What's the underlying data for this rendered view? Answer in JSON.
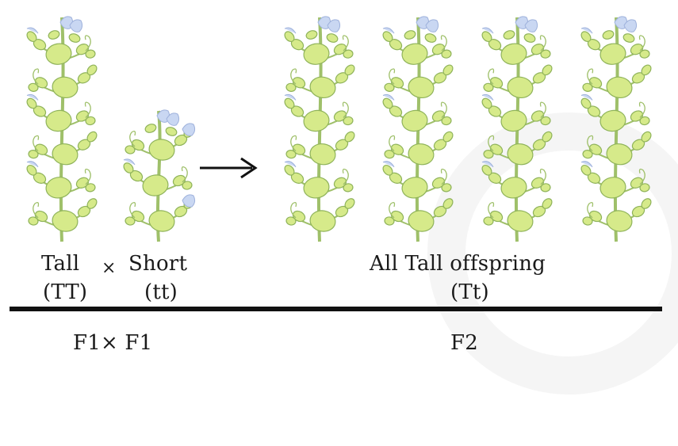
{
  "parents": {
    "tall_label": "Tall",
    "tall_genotype": "(TT)",
    "cross_symbol": "×",
    "short_label": "Short",
    "short_genotype": "(tt)"
  },
  "offspring": {
    "label": "All Tall offspring",
    "genotype": "(Tt)"
  },
  "generations": {
    "left": "F1× F1",
    "right": "F2"
  },
  "colors": {
    "stem": "#9fc06a",
    "leaf_fill": "#d6ea8a",
    "leaf_stroke": "#8fb35a",
    "flower": "#c9d7f2",
    "arrow": "#111111",
    "rule": "#111111"
  },
  "plants": [
    {
      "name": "tall-plant-parent",
      "type": "tall"
    },
    {
      "name": "short-plant-parent",
      "type": "short"
    },
    {
      "name": "tall-plant-offspring-1",
      "type": "tall"
    },
    {
      "name": "tall-plant-offspring-2",
      "type": "tall"
    },
    {
      "name": "tall-plant-offspring-3",
      "type": "tall"
    },
    {
      "name": "tall-plant-offspring-4",
      "type": "tall"
    }
  ]
}
